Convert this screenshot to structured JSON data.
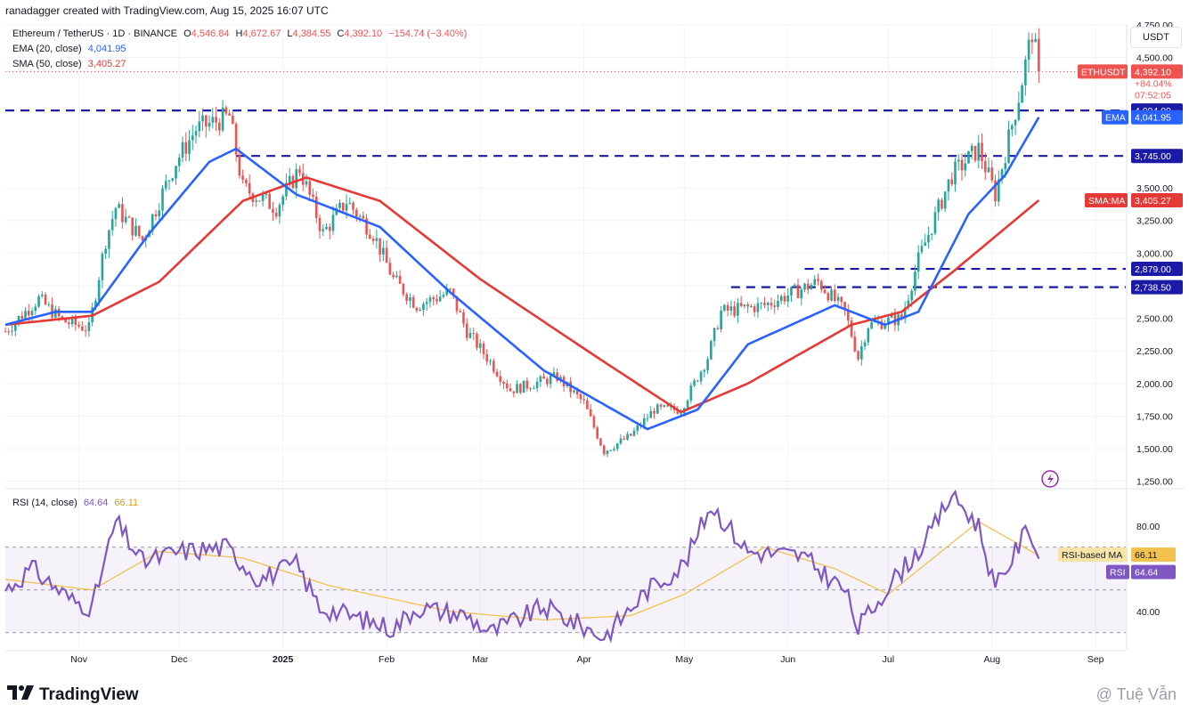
{
  "header": {
    "title": "ranadagger created with TradingView.com, Aug 15, 2025 16:07 UTC"
  },
  "legend": {
    "symbol": "Ethereum / TetherUS · 1D · BINANCE",
    "o_label": "O",
    "o_value": "4,546.84",
    "h_label": "H",
    "h_value": "4,672.67",
    "l_label": "L",
    "l_value": "4,384.55",
    "c_label": "C",
    "c_value": "4,392.10",
    "change": "−154.74 (−3.40%)",
    "ema_label": "EMA (20, close)",
    "ema_value": "4,041.95",
    "sma_label": "SMA (50, close)",
    "sma_value": "3,405.27",
    "rsi_label": "RSI (14, close)",
    "rsi_value": "64.64",
    "rsi_ma_value": "66.11"
  },
  "currency": "USDT",
  "footer": {
    "brand": "TradingView",
    "watermark": "@ Tuệ Vẫn"
  },
  "colors": {
    "up": "#26a69a",
    "down": "#ef5350",
    "ema": "#2962ff",
    "sma": "#e53935",
    "rsi": "#7e57c2",
    "rsi_ma": "#f2c14e",
    "level": "#1a1aa6",
    "grid": "#f0f3fa"
  },
  "chart_data": [
    {
      "type": "candlestick",
      "title": "Ethereum / TetherUS · 1D · BINANCE",
      "ylim": [
        1200,
        4750
      ],
      "y_ticks": [
        "1,250.00",
        "1,500.00",
        "1,750.00",
        "2,000.00",
        "2,250.00",
        "2,500.00",
        "2,750.00",
        "3,000.00",
        "3,250.00",
        "3,500.00",
        "4,500.00",
        "4,750.00"
      ],
      "y_tick_values": [
        1250,
        1500,
        1750,
        2000,
        2250,
        2500,
        2750,
        3000,
        3250,
        3500,
        4500,
        4750
      ],
      "x_ticks": [
        "Nov",
        "Dec",
        "2025",
        "Feb",
        "Mar",
        "Apr",
        "May",
        "Jun",
        "Jul",
        "Aug",
        "Sep"
      ],
      "x_tick_dates": [
        "2024-11-01",
        "2024-12-01",
        "2025-01-01",
        "2025-02-01",
        "2025-03-01",
        "2025-04-01",
        "2025-05-01",
        "2025-06-01",
        "2025-07-01",
        "2025-08-01",
        "2025-09-01"
      ],
      "x_range": [
        "2024-10-10",
        "2025-09-10"
      ],
      "price_anchors": [
        [
          "2024-10-10",
          2400
        ],
        [
          "2024-10-20",
          2650
        ],
        [
          "2024-10-27",
          2480
        ],
        [
          "2024-11-04",
          2420
        ],
        [
          "2024-11-09",
          3100
        ],
        [
          "2024-11-12",
          3350
        ],
        [
          "2024-11-20",
          3100
        ],
        [
          "2024-11-30",
          3700
        ],
        [
          "2024-12-06",
          3950
        ],
        [
          "2024-12-16",
          4050
        ],
        [
          "2024-12-20",
          3500
        ],
        [
          "2024-12-30",
          3350
        ],
        [
          "2025-01-06",
          3650
        ],
        [
          "2025-01-13",
          3150
        ],
        [
          "2025-01-20",
          3400
        ],
        [
          "2025-01-28",
          3150
        ],
        [
          "2025-02-03",
          2800
        ],
        [
          "2025-02-10",
          2600
        ],
        [
          "2025-02-20",
          2700
        ],
        [
          "2025-02-25",
          2400
        ],
        [
          "2025-03-03",
          2200
        ],
        [
          "2025-03-10",
          1950
        ],
        [
          "2025-03-24",
          2050
        ],
        [
          "2025-04-01",
          1850
        ],
        [
          "2025-04-07",
          1480
        ],
        [
          "2025-04-15",
          1600
        ],
        [
          "2025-04-22",
          1800
        ],
        [
          "2025-04-30",
          1800
        ],
        [
          "2025-05-08",
          2200
        ],
        [
          "2025-05-12",
          2550
        ],
        [
          "2025-05-25",
          2600
        ],
        [
          "2025-06-10",
          2780
        ],
        [
          "2025-06-18",
          2550
        ],
        [
          "2025-06-22",
          2200
        ],
        [
          "2025-06-25",
          2450
        ],
        [
          "2025-07-05",
          2500
        ],
        [
          "2025-07-10",
          2950
        ],
        [
          "2025-07-20",
          3600
        ],
        [
          "2025-07-28",
          3800
        ],
        [
          "2025-08-02",
          3450
        ],
        [
          "2025-08-09",
          4200
        ],
        [
          "2025-08-13",
          4700
        ],
        [
          "2025-08-15",
          4392.1
        ]
      ],
      "sma_anchors": [
        [
          "2024-10-10",
          2450
        ],
        [
          "2024-11-05",
          2520
        ],
        [
          "2024-11-25",
          2780
        ],
        [
          "2024-12-20",
          3400
        ],
        [
          "2025-01-08",
          3580
        ],
        [
          "2025-01-30",
          3400
        ],
        [
          "2025-03-01",
          2800
        ],
        [
          "2025-04-05",
          2200
        ],
        [
          "2025-04-30",
          1780
        ],
        [
          "2025-05-20",
          2000
        ],
        [
          "2025-06-20",
          2450
        ],
        [
          "2025-07-05",
          2550
        ],
        [
          "2025-07-20",
          2850
        ],
        [
          "2025-08-15",
          3405.27
        ]
      ],
      "ema_anchors": [
        [
          "2024-10-10",
          2450
        ],
        [
          "2024-10-25",
          2550
        ],
        [
          "2024-11-05",
          2550
        ],
        [
          "2024-11-22",
          3150
        ],
        [
          "2024-12-10",
          3700
        ],
        [
          "2024-12-18",
          3800
        ],
        [
          "2025-01-05",
          3450
        ],
        [
          "2025-01-30",
          3200
        ],
        [
          "2025-02-20",
          2700
        ],
        [
          "2025-03-20",
          2100
        ],
        [
          "2025-04-20",
          1650
        ],
        [
          "2025-05-05",
          1800
        ],
        [
          "2025-05-20",
          2300
        ],
        [
          "2025-06-15",
          2600
        ],
        [
          "2025-06-30",
          2450
        ],
        [
          "2025-07-10",
          2550
        ],
        [
          "2025-07-25",
          3300
        ],
        [
          "2025-08-05",
          3600
        ],
        [
          "2025-08-15",
          4041.95
        ]
      ],
      "horizontal_levels": [
        {
          "value": 4094.0,
          "label": "4,094.00",
          "from": "2024-10-10"
        },
        {
          "value": 3745.0,
          "label": "3,745.00",
          "from": "2024-12-18"
        },
        {
          "value": 2879.0,
          "label": "2,879.00",
          "from": "2025-06-06"
        },
        {
          "value": 2738.5,
          "label": "2,738.50",
          "from": "2025-05-15"
        }
      ],
      "last_price": {
        "value": 4392.1,
        "label": "4,392.10",
        "symbol": "ETHUSDT",
        "change": "+84.04%",
        "countdown": "07:52:05"
      },
      "ema_tag": {
        "name": "EMA",
        "value": 4041.95,
        "label": "4,041.95"
      },
      "sma_tag": {
        "name": "SMA:MA",
        "value": 3405.27,
        "label": "3,405.27"
      }
    },
    {
      "type": "line",
      "title": "RSI (14, close)",
      "ylim": [
        22,
        97
      ],
      "y_ticks": [
        "40.00",
        "60.00",
        "80.00"
      ],
      "y_tick_values": [
        40,
        60,
        80
      ],
      "bands": [
        30,
        50,
        70
      ],
      "rsi_anchors": [
        [
          "2024-10-10",
          50
        ],
        [
          "2024-10-18",
          60
        ],
        [
          "2024-10-30",
          45
        ],
        [
          "2024-11-05",
          42
        ],
        [
          "2024-11-12",
          82
        ],
        [
          "2024-11-20",
          63
        ],
        [
          "2024-12-01",
          68
        ],
        [
          "2024-12-15",
          70
        ],
        [
          "2024-12-25",
          55
        ],
        [
          "2025-01-05",
          62
        ],
        [
          "2025-01-12",
          42
        ],
        [
          "2025-02-03",
          32
        ],
        [
          "2025-02-10",
          42
        ],
        [
          "2025-02-25",
          38
        ],
        [
          "2025-03-04",
          30
        ],
        [
          "2025-03-20",
          42
        ],
        [
          "2025-04-07",
          28
        ],
        [
          "2025-04-20",
          50
        ],
        [
          "2025-05-01",
          62
        ],
        [
          "2025-05-09",
          90
        ],
        [
          "2025-05-20",
          68
        ],
        [
          "2025-06-05",
          66
        ],
        [
          "2025-06-18",
          50
        ],
        [
          "2025-06-22",
          32
        ],
        [
          "2025-07-01",
          52
        ],
        [
          "2025-07-12",
          72
        ],
        [
          "2025-07-20",
          95
        ],
        [
          "2025-07-28",
          80
        ],
        [
          "2025-08-02",
          50
        ],
        [
          "2025-08-12",
          80
        ],
        [
          "2025-08-15",
          64.64
        ]
      ],
      "rsi_ma_anchors": [
        [
          "2024-10-10",
          55
        ],
        [
          "2024-11-05",
          50
        ],
        [
          "2024-11-25",
          68
        ],
        [
          "2024-12-20",
          65
        ],
        [
          "2025-01-15",
          52
        ],
        [
          "2025-02-20",
          40
        ],
        [
          "2025-03-20",
          36
        ],
        [
          "2025-04-15",
          38
        ],
        [
          "2025-05-01",
          48
        ],
        [
          "2025-05-25",
          70
        ],
        [
          "2025-06-15",
          60
        ],
        [
          "2025-07-01",
          48
        ],
        [
          "2025-07-20",
          72
        ],
        [
          "2025-07-28",
          82
        ],
        [
          "2025-08-15",
          66.11
        ]
      ],
      "tags": [
        {
          "name": "RSI-based MA",
          "value": 66.11,
          "label": "66.11"
        },
        {
          "name": "RSI",
          "value": 64.64,
          "label": "64.64"
        }
      ]
    }
  ]
}
